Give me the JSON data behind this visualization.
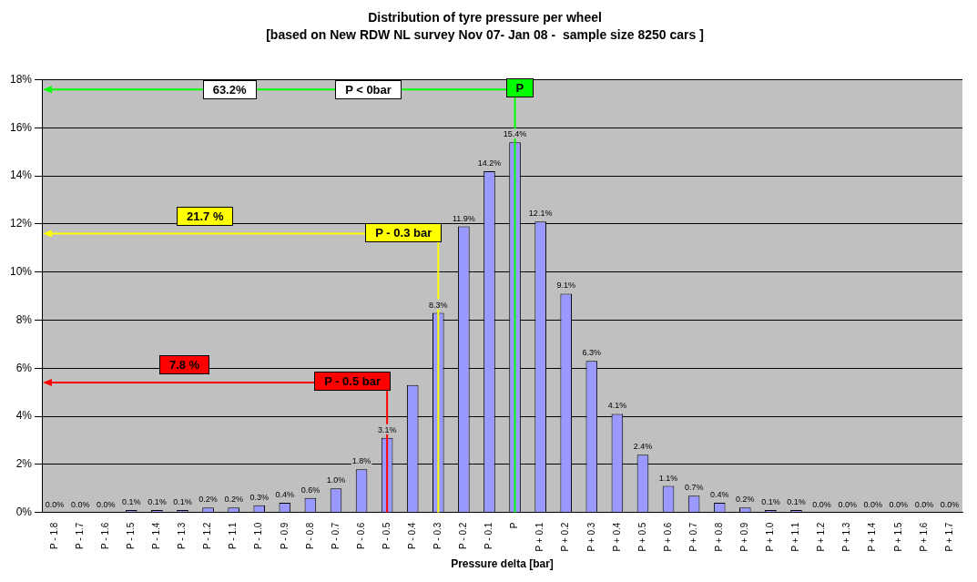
{
  "chart_data": {
    "type": "bar",
    "title": "Distribution of tyre pressure per wheel",
    "subtitle": "[based on New RDW NL survey Nov 07- Jan 08 -  sample size 8250 cars ]",
    "xlabel": "Pressure delta [bar]",
    "categories": [
      "P - 1.8",
      "P - 1.7",
      "P - 1.6",
      "P - 1.5",
      "P - 1.4",
      "P - 1.3",
      "P - 1.2",
      "P - 1.1",
      "P - 1.0",
      "P - 0.9",
      "P - 0.8",
      "P - 0.7",
      "P - 0.6",
      "P - 0.5",
      "P - 0.4",
      "P - 0.3",
      "P - 0.2",
      "P - 0.1",
      "P",
      "P + 0.1",
      "P + 0.2",
      "P + 0.3",
      "P + 0.4",
      "P + 0.5",
      "P + 0.6",
      "P + 0.7",
      "P + 0.8",
      "P + 0.9",
      "P + 1.0",
      "P + 1.1",
      "P + 1.2",
      "P + 1.3",
      "P + 1.4",
      "P + 1.5",
      "P + 1.6",
      "P + 1.7"
    ],
    "values": [
      0.0,
      0.0,
      0.0,
      0.1,
      0.1,
      0.1,
      0.2,
      0.2,
      0.3,
      0.4,
      0.6,
      1.0,
      1.8,
      3.1,
      5.3,
      8.3,
      11.9,
      14.2,
      15.4,
      12.1,
      9.1,
      6.3,
      4.1,
      2.4,
      1.1,
      0.7,
      0.4,
      0.2,
      0.1,
      0.1,
      0.0,
      0.0,
      0.0,
      0.0,
      0.0,
      0.0
    ],
    "value_labels": [
      "0.0%",
      "0.0%",
      "0.0%",
      "0.1%",
      "0.1%",
      "0.1%",
      "0.2%",
      "0.2%",
      "0.3%",
      "0.4%",
      "0.6%",
      "1.0%",
      "1.8%",
      "3.1%",
      null,
      "8.3%",
      "11.9%",
      "14.2%",
      "15.4%",
      "12.1%",
      "9.1%",
      "6.3%",
      "4.1%",
      "2.4%",
      "1.1%",
      "0.7%",
      "0.4%",
      "0.2%",
      "0.1%",
      "0.1%",
      "0.0%",
      "0.0%",
      "0.0%",
      "0.0%",
      "0.0%",
      "0.0%"
    ],
    "color": "#9999ff",
    "ylim": [
      0,
      18
    ],
    "yticks": [
      {
        "value": 0,
        "label": "0%"
      },
      {
        "value": 2,
        "label": "2%"
      },
      {
        "value": 4,
        "label": "4%"
      },
      {
        "value": 6,
        "label": "6%"
      },
      {
        "value": 8,
        "label": "8%"
      },
      {
        "value": 10,
        "label": "10%"
      },
      {
        "value": 12,
        "label": "12%"
      },
      {
        "value": 14,
        "label": "14%"
      },
      {
        "value": 16,
        "label": "16%"
      },
      {
        "value": 18,
        "label": "18%"
      }
    ],
    "grid": "y",
    "legend": false,
    "ref_lines": [
      {
        "axis": "x",
        "value": "P",
        "color": "#00ff00"
      },
      {
        "axis": "x",
        "value": "P - 0.3",
        "color": "#ffff00"
      },
      {
        "axis": "x",
        "value": "P - 0.5",
        "color": "#ff0000"
      }
    ],
    "annotations": [
      {
        "text": "P",
        "x": "P",
        "y": 17.6
      },
      {
        "text": "P - 0.3 bar",
        "x": "P - 0.3",
        "y": 11.6
      },
      {
        "text": "P - 0.5 bar",
        "x": "P - 0.5",
        "y": 5.4
      },
      "63.2%",
      "21.7 %",
      "7.8 %",
      "P < 0bar"
    ]
  }
}
